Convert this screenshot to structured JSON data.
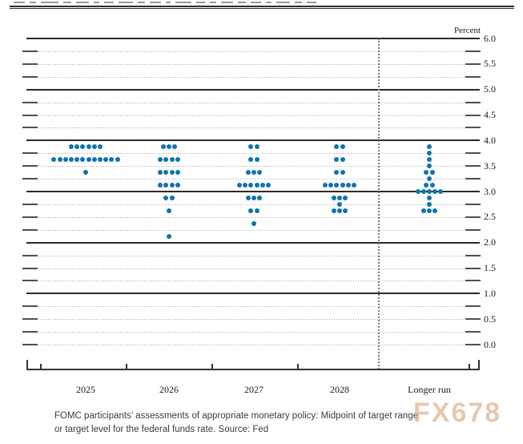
{
  "chart_data": {
    "type": "scatter",
    "subtype": "fomc-dot-plot",
    "unit_label": "Percent",
    "y_axis": {
      "min": 0.0,
      "max": 6.0,
      "label_step": 0.5,
      "grid_step": 0.25,
      "tick_labels": [
        "6.0",
        "5.5",
        "5.0",
        "4.5",
        "4.0",
        "3.5",
        "3.0",
        "2.5",
        "2.0",
        "1.5",
        "1.0",
        "0.5",
        "0.0"
      ]
    },
    "x_categories": [
      "2025",
      "2026",
      "2027",
      "2028",
      "Longer run"
    ],
    "separator_before_category": "Longer run",
    "series": [
      {
        "category": "2025",
        "dots": [
          {
            "rate": 3.875,
            "count": 6
          },
          {
            "rate": 3.625,
            "count": 12
          },
          {
            "rate": 3.375,
            "count": 1
          }
        ]
      },
      {
        "category": "2026",
        "dots": [
          {
            "rate": 3.875,
            "count": 3
          },
          {
            "rate": 3.625,
            "count": 4
          },
          {
            "rate": 3.375,
            "count": 4
          },
          {
            "rate": 3.125,
            "count": 4
          },
          {
            "rate": 2.875,
            "count": 2
          },
          {
            "rate": 2.625,
            "count": 1
          },
          {
            "rate": 2.125,
            "count": 1
          }
        ]
      },
      {
        "category": "2027",
        "dots": [
          {
            "rate": 3.875,
            "count": 2
          },
          {
            "rate": 3.625,
            "count": 2
          },
          {
            "rate": 3.375,
            "count": 3
          },
          {
            "rate": 3.125,
            "count": 6
          },
          {
            "rate": 2.875,
            "count": 3
          },
          {
            "rate": 2.625,
            "count": 2
          },
          {
            "rate": 2.375,
            "count": 1
          }
        ]
      },
      {
        "category": "2028",
        "dots": [
          {
            "rate": 3.875,
            "count": 2
          },
          {
            "rate": 3.625,
            "count": 2
          },
          {
            "rate": 3.375,
            "count": 2
          },
          {
            "rate": 3.125,
            "count": 6
          },
          {
            "rate": 2.875,
            "count": 3
          },
          {
            "rate": 2.75,
            "count": 1
          },
          {
            "rate": 2.625,
            "count": 3
          }
        ]
      },
      {
        "category": "Longer run",
        "dots": [
          {
            "rate": 3.875,
            "count": 1
          },
          {
            "rate": 3.75,
            "count": 1
          },
          {
            "rate": 3.625,
            "count": 1
          },
          {
            "rate": 3.5,
            "count": 1
          },
          {
            "rate": 3.375,
            "count": 2
          },
          {
            "rate": 3.25,
            "count": 1
          },
          {
            "rate": 3.125,
            "count": 2
          },
          {
            "rate": 3.0,
            "count": 5
          },
          {
            "rate": 2.875,
            "count": 1
          },
          {
            "rate": 2.75,
            "count": 1
          },
          {
            "rate": 2.625,
            "count": 3
          }
        ]
      }
    ],
    "participants_per_column": 19
  },
  "colors": {
    "dot": "#1273ab",
    "solid_line": "#2a2a2a",
    "watermark": "#d9a87c"
  },
  "caption": {
    "line1": "FOMC participants’ assessments of appropriate monetary policy: Midpoint of target range",
    "line2": "or target level for the federal funds rate. Source: Fed"
  },
  "watermark_text": "FX678"
}
